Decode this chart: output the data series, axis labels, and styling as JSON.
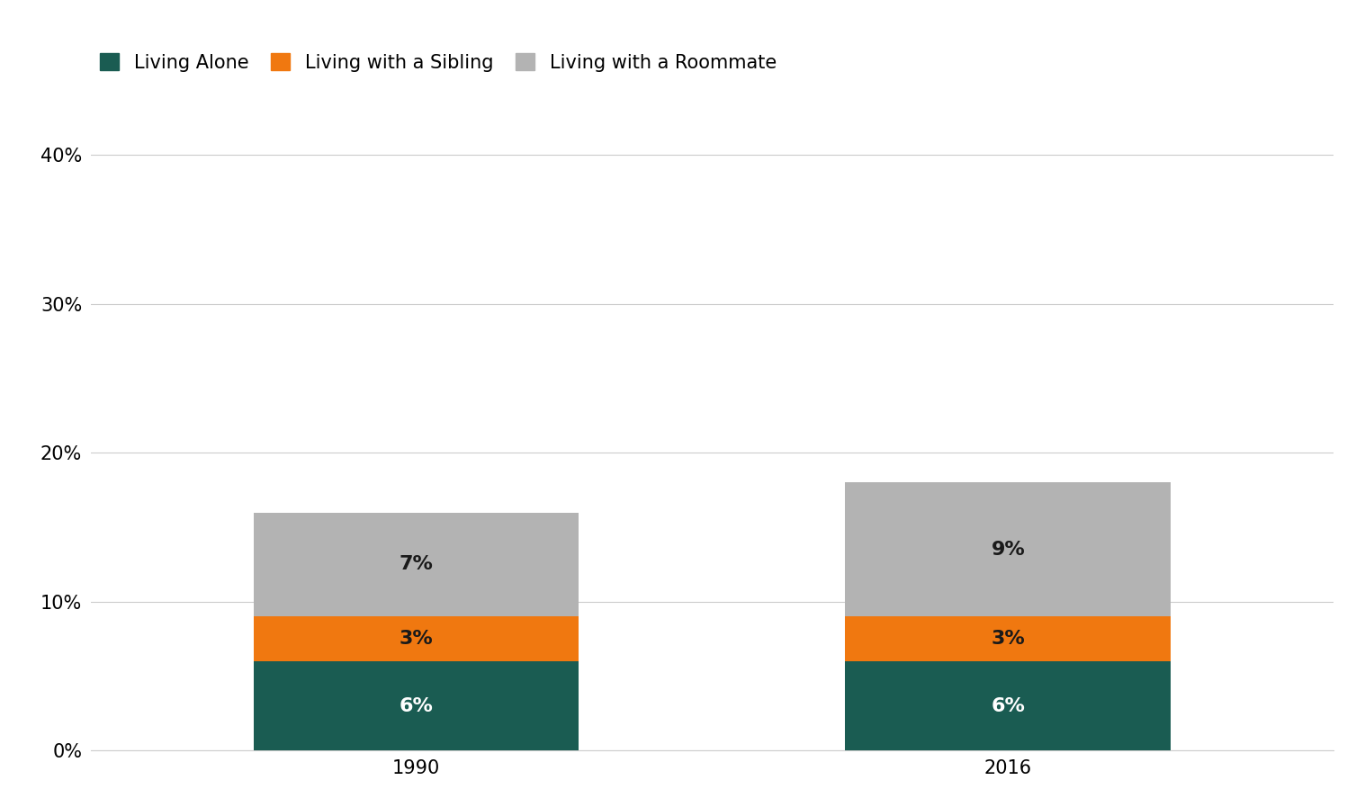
{
  "categories": [
    "1990",
    "2016"
  ],
  "living_alone": [
    6,
    6
  ],
  "living_with_sibling": [
    3,
    3
  ],
  "living_with_roommate": [
    7,
    9
  ],
  "color_alone": "#1a5c52",
  "color_sibling": "#f07810",
  "color_roommate": "#b3b3b3",
  "legend_labels": [
    "Living Alone",
    "Living with a Sibling",
    "Living with a Roommate"
  ],
  "ylim": [
    0,
    42
  ],
  "yticks": [
    0,
    10,
    20,
    30,
    40
  ],
  "ytick_labels": [
    "0%",
    "10%",
    "20%",
    "30%",
    "40%"
  ],
  "bar_width": 0.55,
  "x_positions": [
    0.25,
    0.75
  ],
  "background_color": "#ffffff",
  "label_color_alone": "#ffffff",
  "label_color_sibling": "#1a1a1a",
  "label_color_roommate": "#1a1a1a",
  "label_fontsize": 16,
  "tick_fontsize": 15,
  "legend_fontsize": 15
}
